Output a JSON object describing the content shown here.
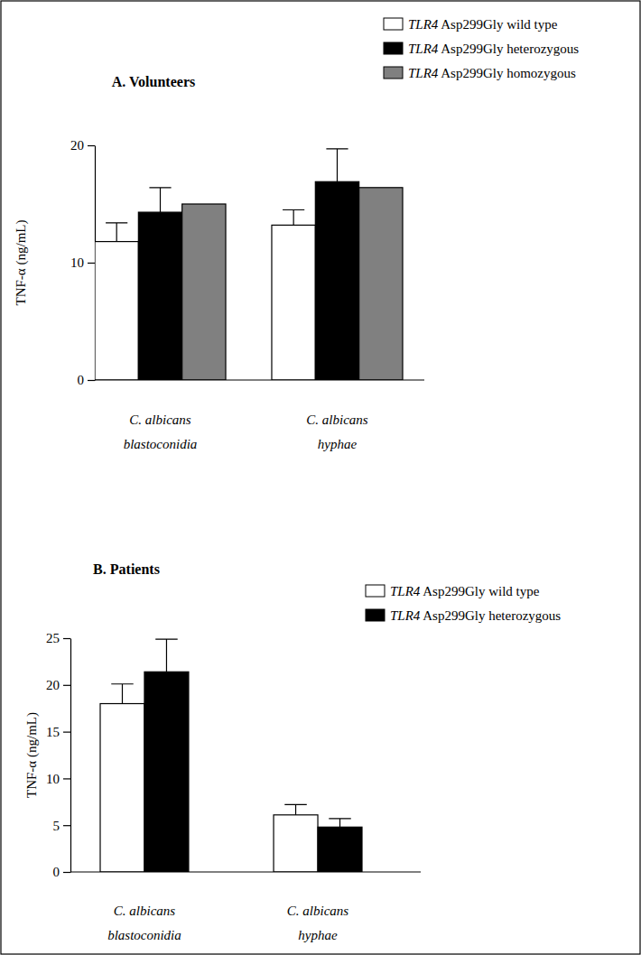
{
  "chart_data": [
    {
      "type": "bar",
      "title": "A. Volunteers",
      "ylabel": "TNF-α (ng/mL)",
      "categories": [
        "C. albicans blastoconidia",
        "C. albicans hyphae"
      ],
      "series": [
        {
          "name": "TLR4 Asp299Gly wild type",
          "color": "#ffffff",
          "values": [
            11.8,
            13.2
          ],
          "errors": [
            1.6,
            1.3
          ]
        },
        {
          "name": "TLR4 Asp299Gly heterozygous",
          "color": "#000000",
          "values": [
            14.3,
            16.9
          ],
          "errors": [
            2.1,
            2.8
          ]
        },
        {
          "name": "TLR4 Asp299Gly homozygous",
          "color": "#808080",
          "values": [
            15.0,
            16.4
          ],
          "errors": [
            null,
            null
          ]
        }
      ],
      "ylim": [
        0,
        20
      ],
      "yticks": [
        0,
        10,
        20
      ],
      "legend": "top-right"
    },
    {
      "type": "bar",
      "title": "B. Patients",
      "ylabel": "TNF-α (ng/mL)",
      "categories": [
        "C. albicans blastoconidia",
        "C. albicans hyphae"
      ],
      "series": [
        {
          "name": "TLR4 Asp299Gly wild type",
          "color": "#ffffff",
          "values": [
            18.0,
            6.1
          ],
          "errors": [
            2.1,
            1.1
          ]
        },
        {
          "name": "TLR4 Asp299Gly heterozygous",
          "color": "#000000",
          "values": [
            21.4,
            4.8
          ],
          "errors": [
            3.5,
            0.9
          ]
        }
      ],
      "ylim": [
        0,
        25
      ],
      "yticks": [
        0,
        5,
        10,
        15,
        20,
        25
      ],
      "legend": "top-right"
    }
  ]
}
